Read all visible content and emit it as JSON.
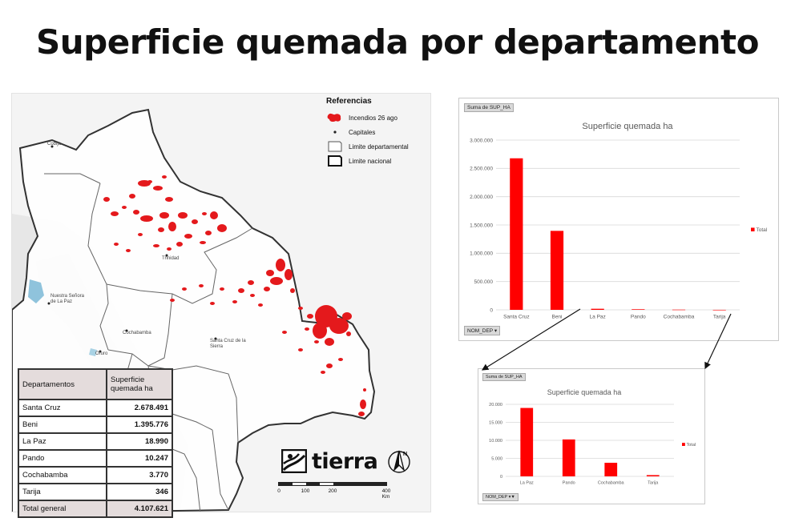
{
  "page": {
    "title": "Superficie quemada por departamento"
  },
  "map": {
    "legend": {
      "title": "Referencias",
      "items": [
        {
          "label": "Incendios 26 ago",
          "icon": "fire-patch-icon",
          "color": "#e4191c"
        },
        {
          "label": "Capitales",
          "icon": "capital-dot-icon"
        },
        {
          "label": "Limite departamental",
          "icon": "department-boundary-icon"
        },
        {
          "label": "Limite nacional",
          "icon": "national-boundary-icon"
        }
      ]
    },
    "place_labels": {
      "cobija": "Cobija",
      "trinidad": "Trinidad",
      "lapaz": "Nuestra Señora de La Paz",
      "cochabamba": "Cochabamba",
      "santacruz": "Santa Cruz de la Sierra",
      "oruro": "Oruro"
    },
    "logo": {
      "text": "tierra",
      "north": "N"
    },
    "scale": {
      "ticks": [
        "0",
        "100",
        "200",
        "400 Km"
      ]
    },
    "colors": {
      "fire": "#e4191c",
      "land": "#ffffff",
      "relief": "#e8e8e8",
      "border": "#222222"
    }
  },
  "table": {
    "header": {
      "dept": "Departamentos",
      "value": "Superficie quemada ha"
    },
    "rows": [
      {
        "dept": "Santa Cruz",
        "value": "2.678.491"
      },
      {
        "dept": "Beni",
        "value": "1.395.776"
      },
      {
        "dept": "La Paz",
        "value": "18.990"
      },
      {
        "dept": "Pando",
        "value": "10.247"
      },
      {
        "dept": "Cochabamba",
        "value": "3.770"
      },
      {
        "dept": "Tarija",
        "value": "346"
      }
    ],
    "total": {
      "dept": "Total general",
      "value": "4.107.621"
    }
  },
  "chart_data": [
    {
      "type": "bar",
      "title": "Superficie quemada ha",
      "pivot_value_field": "Suma de SUP_HA",
      "pivot_axis_field": "NOM_DEP",
      "categories": [
        "Santa Cruz",
        "Beni",
        "La Paz",
        "Pando",
        "Cochabamba",
        "Tarija"
      ],
      "series": [
        {
          "name": "Total",
          "values": [
            2678491,
            1395776,
            18990,
            10247,
            3770,
            346
          ],
          "color": "#ff0000"
        }
      ],
      "ylim": [
        0,
        3000000
      ],
      "yticks": [
        0,
        500000,
        1000000,
        1500000,
        2000000,
        2500000,
        3000000
      ],
      "ytick_labels": [
        "0",
        "500.000",
        "1.000.000",
        "1.500.000",
        "2.000.000",
        "2.500.000",
        "3.000.000"
      ],
      "grid": true,
      "legend": "right"
    },
    {
      "type": "bar",
      "title": "Superficie quemada ha",
      "pivot_value_field": "Suma de SUP_HA",
      "pivot_axis_field": "NOM_DEP",
      "categories": [
        "La Paz",
        "Pando",
        "Cochabamba",
        "Tarija"
      ],
      "series": [
        {
          "name": "Total",
          "values": [
            18990,
            10247,
            3770,
            346
          ],
          "color": "#ff0000"
        }
      ],
      "ylim": [
        0,
        20000
      ],
      "yticks": [
        0,
        5000,
        10000,
        15000,
        20000
      ],
      "ytick_labels": [
        "0",
        "5.000",
        "10.000",
        "15.000",
        "20.000"
      ],
      "grid": true,
      "legend": "right"
    }
  ]
}
